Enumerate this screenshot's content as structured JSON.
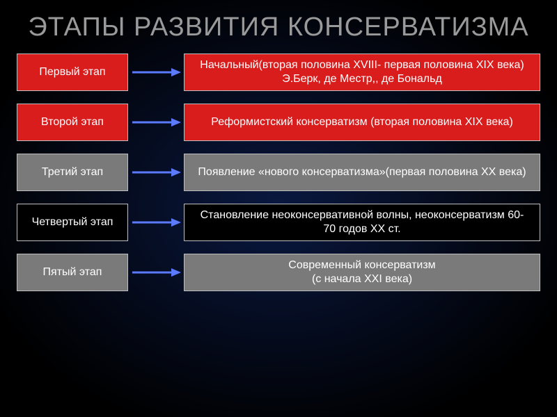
{
  "title": {
    "text": "ЭТАПЫ РАЗВИТИЯ КОНСЕРВАТИЗМА",
    "color": "#9a9a9a",
    "fontsize": 38
  },
  "colors": {
    "red": "#d91c1c",
    "gray": "#7a7a7a",
    "darkbg": "#000000",
    "border": "#c0c0c0",
    "text": "#ffffff",
    "arrow": "#5a7aff"
  },
  "diagram": {
    "type": "flowchart",
    "layout": "horizontal-pairs",
    "row_gap": 18,
    "stage_box_width": 160,
    "arrow_width": 80,
    "rows": [
      {
        "stage": {
          "label": "Первый этап",
          "bg": "#d91c1c"
        },
        "desc": {
          "label": "Начальный(вторая половина XVIII- первая половина XIX века) Э.Берк, де Местр,, де Бональд",
          "bg": "#d91c1c"
        }
      },
      {
        "stage": {
          "label": "Второй этап",
          "bg": "#d91c1c"
        },
        "desc": {
          "label": "Реформистский консерватизм (вторая половина XIX века)",
          "bg": "#d91c1c"
        }
      },
      {
        "stage": {
          "label": "Третий этап",
          "bg": "#7a7a7a"
        },
        "desc": {
          "label": "Появление  «нового консерватизма»(первая половина XX века)",
          "bg": "#7a7a7a"
        }
      },
      {
        "stage": {
          "label": "Четвертый этап",
          "bg": "#000000"
        },
        "desc": {
          "label": "Становление неоконсервативной волны, неоконсерватизм 60-70 годов XX ст.",
          "bg": "#000000"
        }
      },
      {
        "stage": {
          "label": "Пятый этап",
          "bg": "#7a7a7a"
        },
        "desc": {
          "label": "Современный консерватизм\n(с начала XXI  века)",
          "bg": "#7a7a7a"
        }
      }
    ]
  }
}
